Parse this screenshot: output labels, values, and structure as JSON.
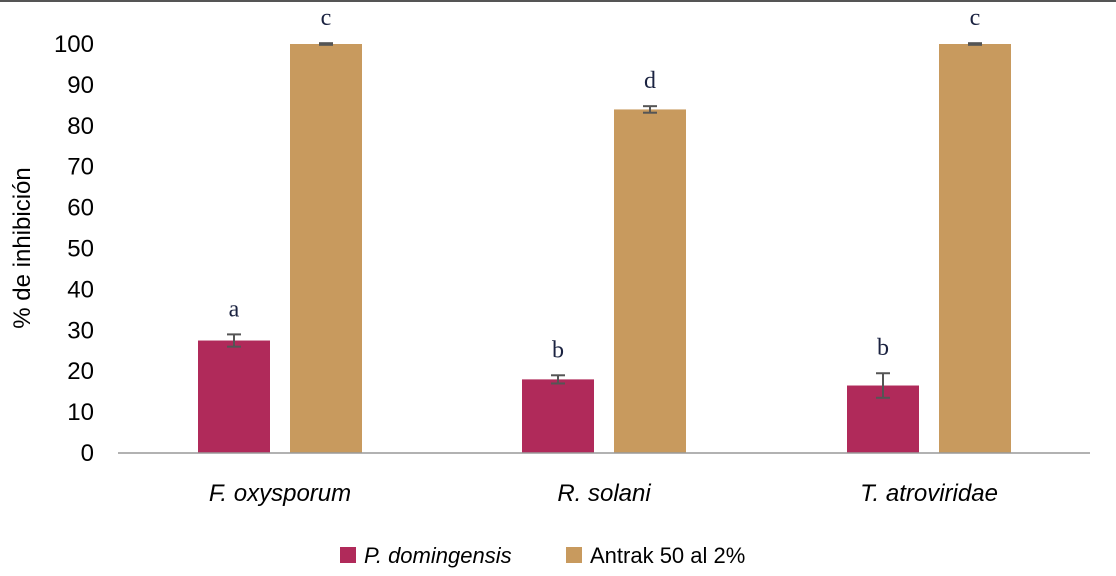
{
  "chart_data": {
    "type": "bar",
    "title": "",
    "ylabel": "% de inhibición",
    "xlabel": "",
    "ylim": [
      0,
      100
    ],
    "yticks": [
      0,
      10,
      20,
      30,
      40,
      50,
      60,
      70,
      80,
      90,
      100
    ],
    "categories": [
      "F. oxysporum",
      "R. solani",
      "T. atroviridae"
    ],
    "series": [
      {
        "name": "P. domingensis",
        "color": "#b02a5a",
        "values": [
          27.5,
          18,
          16.5
        ],
        "errors": [
          1.5,
          1,
          3
        ],
        "letters": [
          "a",
          "b",
          "b"
        ]
      },
      {
        "name": "Antrak 50 al 2%",
        "color": "#c89a5e",
        "values": [
          100,
          84,
          100
        ],
        "errors": [
          0.2,
          0.8,
          0.2
        ],
        "letters": [
          "c",
          "d",
          "c"
        ]
      }
    ],
    "legend": {
      "position": "bottom"
    },
    "grid": false
  }
}
